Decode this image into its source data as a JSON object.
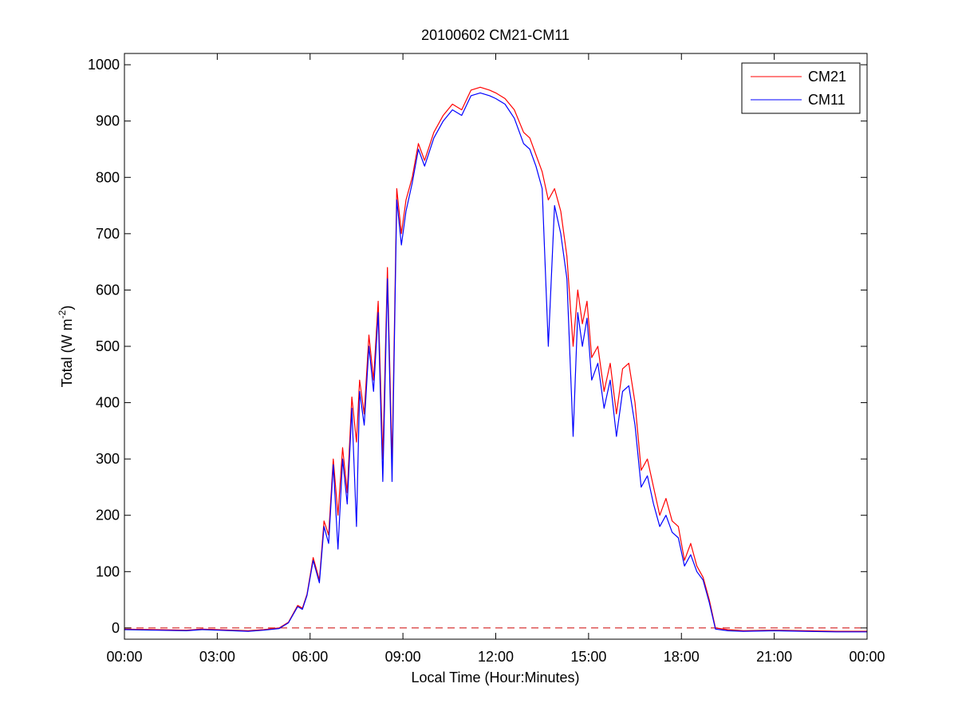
{
  "chart_data": {
    "type": "line",
    "title": "20100602 CM21-CM11",
    "xlabel": "Local Time (Hour:Minutes)",
    "ylabel": "Total (W m-2)",
    "ylabel_parts": {
      "main": "Total (W m",
      "sup": "-2",
      "close": ")"
    },
    "x_unit": "hours",
    "xlim": [
      0,
      24
    ],
    "ylim": [
      -20,
      1020
    ],
    "x_ticks": [
      {
        "value": 0,
        "label": "00:00"
      },
      {
        "value": 3,
        "label": "03:00"
      },
      {
        "value": 6,
        "label": "06:00"
      },
      {
        "value": 9,
        "label": "09:00"
      },
      {
        "value": 12,
        "label": "12:00"
      },
      {
        "value": 15,
        "label": "15:00"
      },
      {
        "value": 18,
        "label": "18:00"
      },
      {
        "value": 21,
        "label": "21:00"
      },
      {
        "value": 24,
        "label": "00:00"
      }
    ],
    "y_ticks": [
      {
        "value": 0,
        "label": "0"
      },
      {
        "value": 100,
        "label": "100"
      },
      {
        "value": 200,
        "label": "200"
      },
      {
        "value": 300,
        "label": "300"
      },
      {
        "value": 400,
        "label": "400"
      },
      {
        "value": 500,
        "label": "500"
      },
      {
        "value": 600,
        "label": "600"
      },
      {
        "value": 700,
        "label": "700"
      },
      {
        "value": 800,
        "label": "800"
      },
      {
        "value": 900,
        "label": "900"
      },
      {
        "value": 1000,
        "label": "1000"
      }
    ],
    "grid": false,
    "legend_position": "top-right",
    "reference_line": {
      "y": 0,
      "style": "dashed",
      "color": "#cc0000"
    },
    "series": [
      {
        "name": "CM21",
        "color": "#ff0000",
        "x": [
          0,
          1,
          2,
          2.5,
          3,
          3.5,
          4,
          4.5,
          5,
          5.3,
          5.6,
          5.75,
          5.9,
          6.1,
          6.3,
          6.45,
          6.6,
          6.75,
          6.9,
          7.05,
          7.2,
          7.35,
          7.5,
          7.6,
          7.75,
          7.9,
          8.05,
          8.2,
          8.35,
          8.5,
          8.65,
          8.8,
          8.95,
          9.1,
          9.3,
          9.5,
          9.7,
          10,
          10.3,
          10.6,
          10.9,
          11.2,
          11.5,
          11.8,
          12,
          12.3,
          12.6,
          12.9,
          13.1,
          13.3,
          13.5,
          13.7,
          13.9,
          14.1,
          14.3,
          14.5,
          14.65,
          14.8,
          14.95,
          15.1,
          15.3,
          15.5,
          15.7,
          15.9,
          16.1,
          16.3,
          16.5,
          16.7,
          16.9,
          17.1,
          17.3,
          17.5,
          17.7,
          17.9,
          18.1,
          18.3,
          18.5,
          18.7,
          18.9,
          19.1,
          19.5,
          20,
          21,
          22,
          23,
          24
        ],
        "values": [
          -2,
          -3,
          -4,
          -2,
          -3,
          -4,
          -5,
          -3,
          0,
          10,
          40,
          35,
          60,
          125,
          85,
          190,
          165,
          300,
          200,
          320,
          240,
          410,
          330,
          440,
          380,
          520,
          440,
          580,
          300,
          640,
          290,
          780,
          700,
          760,
          800,
          860,
          830,
          880,
          910,
          930,
          920,
          955,
          960,
          955,
          950,
          940,
          920,
          880,
          870,
          840,
          810,
          760,
          780,
          740,
          660,
          500,
          600,
          540,
          580,
          480,
          500,
          420,
          470,
          380,
          460,
          470,
          400,
          280,
          300,
          250,
          200,
          230,
          190,
          180,
          120,
          150,
          110,
          90,
          50,
          0,
          -3,
          -5,
          -4,
          -5,
          -6,
          -6
        ]
      },
      {
        "name": "CM11",
        "color": "#0000ff",
        "x": [
          0,
          1,
          2,
          2.5,
          3,
          3.5,
          4,
          4.5,
          5,
          5.3,
          5.6,
          5.75,
          5.9,
          6.1,
          6.3,
          6.45,
          6.6,
          6.75,
          6.9,
          7.05,
          7.2,
          7.35,
          7.5,
          7.6,
          7.75,
          7.9,
          8.05,
          8.2,
          8.35,
          8.5,
          8.65,
          8.8,
          8.95,
          9.1,
          9.3,
          9.5,
          9.7,
          10,
          10.3,
          10.6,
          10.9,
          11.2,
          11.5,
          11.8,
          12,
          12.3,
          12.6,
          12.9,
          13.1,
          13.3,
          13.5,
          13.7,
          13.9,
          14.1,
          14.3,
          14.5,
          14.65,
          14.8,
          14.95,
          15.1,
          15.3,
          15.5,
          15.7,
          15.9,
          16.1,
          16.3,
          16.5,
          16.7,
          16.9,
          17.1,
          17.3,
          17.5,
          17.7,
          17.9,
          18.1,
          18.3,
          18.5,
          18.7,
          18.9,
          19.1,
          19.5,
          20,
          21,
          22,
          23,
          24
        ],
        "values": [
          -3,
          -4,
          -5,
          -3,
          -4,
          -5,
          -6,
          -4,
          -1,
          9,
          38,
          33,
          58,
          120,
          80,
          180,
          150,
          290,
          140,
          300,
          220,
          390,
          180,
          420,
          360,
          500,
          420,
          560,
          260,
          620,
          260,
          760,
          680,
          740,
          790,
          850,
          820,
          870,
          900,
          920,
          910,
          945,
          950,
          945,
          940,
          930,
          905,
          860,
          850,
          820,
          780,
          500,
          750,
          700,
          620,
          340,
          560,
          500,
          550,
          440,
          470,
          390,
          440,
          340,
          420,
          430,
          360,
          250,
          270,
          220,
          180,
          200,
          170,
          160,
          110,
          130,
          100,
          85,
          45,
          -2,
          -5,
          -6,
          -5,
          -6,
          -7,
          -7
        ]
      }
    ]
  }
}
